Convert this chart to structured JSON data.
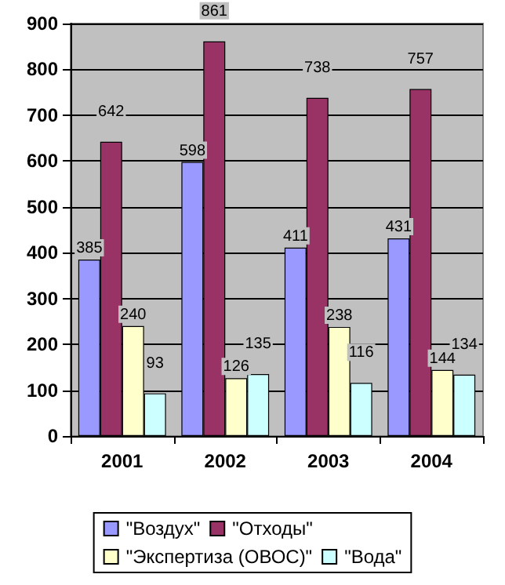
{
  "chart_data": {
    "type": "bar",
    "categories": [
      "2001",
      "2002",
      "2003",
      "2004"
    ],
    "series": [
      {
        "name": "\"Воздух\"",
        "color": "#9999ff",
        "values": [
          385,
          598,
          411,
          431
        ]
      },
      {
        "name": "\"Отходы\"",
        "color": "#993366",
        "values": [
          642,
          861,
          738,
          757
        ]
      },
      {
        "name": "\"Экспертиза (ОВОС)\"",
        "color": "#ffffcc",
        "values": [
          240,
          126,
          238,
          144
        ]
      },
      {
        "name": "\"Вода\"",
        "color": "#ccffff",
        "values": [
          93,
          135,
          116,
          134
        ]
      }
    ],
    "ylim": [
      0,
      900
    ],
    "yticks": [
      0,
      100,
      200,
      300,
      400,
      500,
      600,
      700,
      800,
      900
    ],
    "grid": "y",
    "legend": "bottom",
    "data_labels": true
  }
}
